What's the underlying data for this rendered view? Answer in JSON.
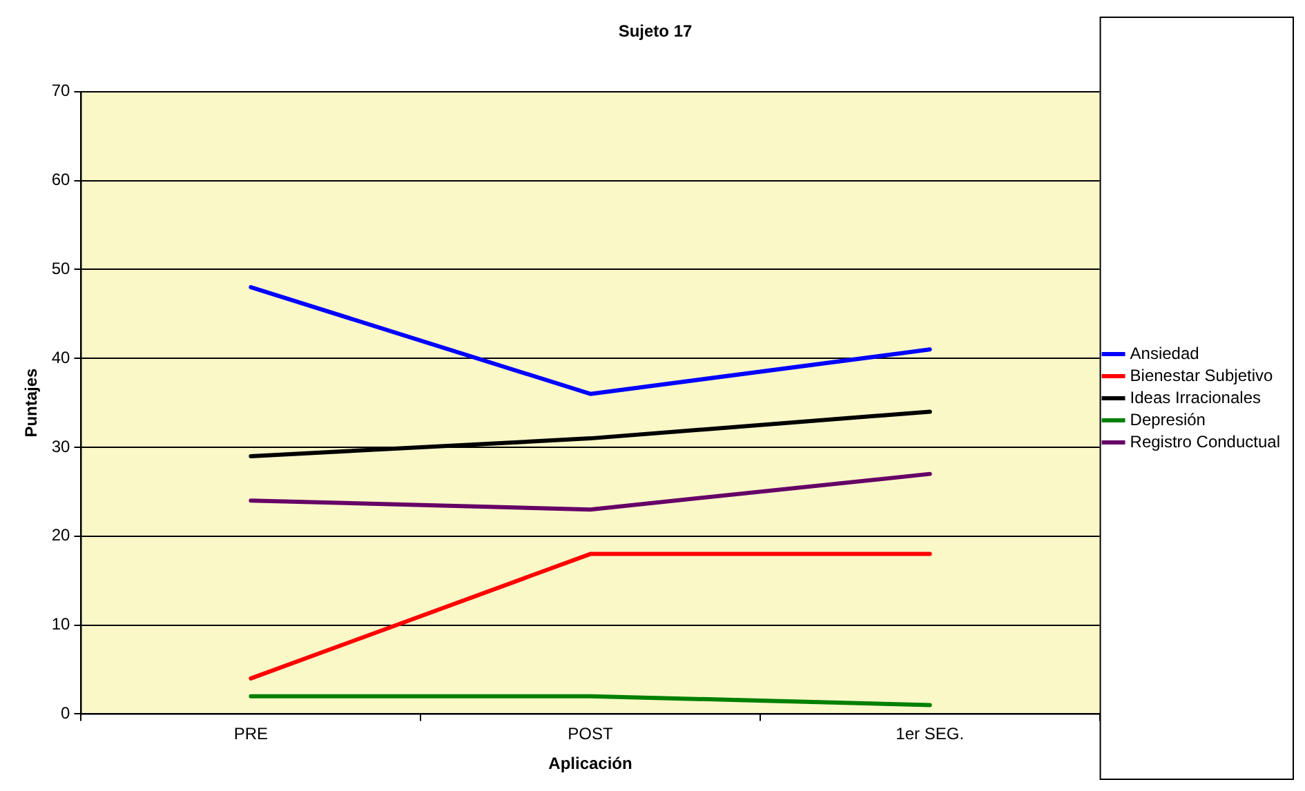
{
  "chart_data": {
    "type": "line",
    "title": "Sujeto 17",
    "xlabel": "Aplicación",
    "ylabel": "Puntajes",
    "categories": [
      "PRE",
      "POST",
      "1er SEG."
    ],
    "series": [
      {
        "name": "Ansiedad",
        "color": "#0000ff",
        "values": [
          48,
          36,
          41
        ]
      },
      {
        "name": "Bienestar Subjetivo",
        "color": "#ff0000",
        "values": [
          4,
          18,
          18
        ]
      },
      {
        "name": "Ideas Irracionales",
        "color": "#000000",
        "values": [
          29,
          31,
          34
        ]
      },
      {
        "name": "Depresión",
        "color": "#008000",
        "values": [
          2,
          2,
          1
        ]
      },
      {
        "name": "Registro Conductual",
        "color": "#660066",
        "values": [
          24,
          23,
          27
        ]
      }
    ],
    "ylim": [
      0,
      70
    ],
    "yticks": [
      0,
      10,
      20,
      30,
      40,
      50,
      60,
      70
    ],
    "grid": "y",
    "legend": "right",
    "marker": "none",
    "line_style": "solid"
  }
}
